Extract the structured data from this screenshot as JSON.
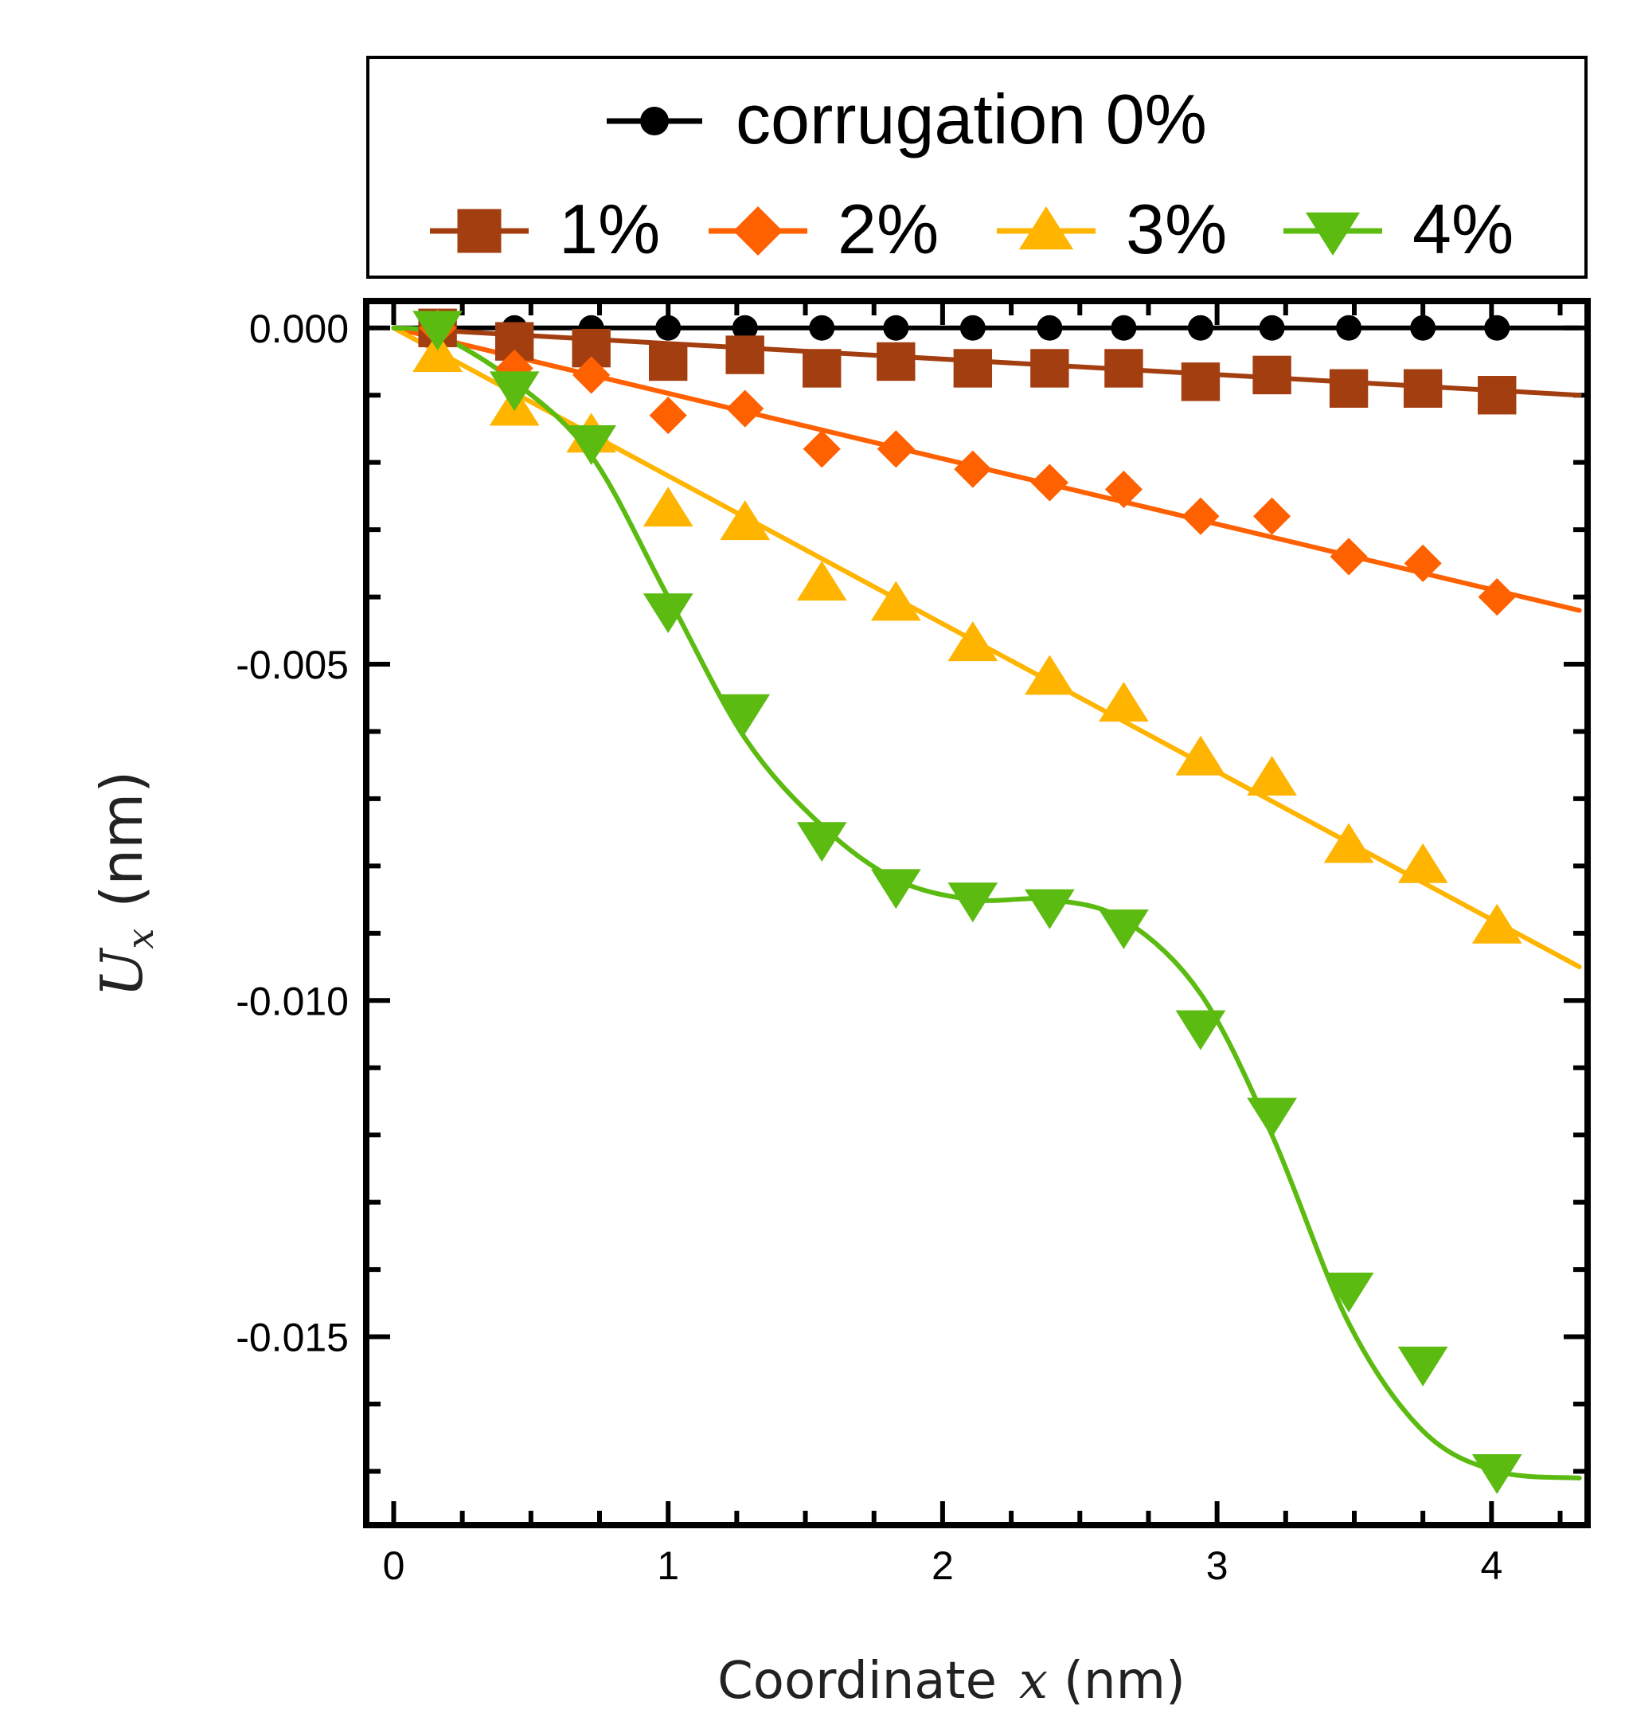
{
  "chart_data": {
    "type": "line",
    "xlabel_prefix": "Coordinate",
    "xlabel_var": "x",
    "xlabel_unit": "(nm)",
    "ylabel_var": "U",
    "ylabel_sub": "x",
    "ylabel_unit": "(nm)",
    "xlim": [
      -0.1,
      4.35
    ],
    "ylim": [
      -0.0178,
      0.0004
    ],
    "x_ticks": [
      0,
      1,
      2,
      3,
      4
    ],
    "x_tick_labels": [
      "0",
      "1",
      "2",
      "3",
      "4"
    ],
    "y_ticks": [
      0,
      -0.005,
      -0.01,
      -0.015
    ],
    "y_tick_labels": [
      "0.000",
      "-0.005",
      "-0.010",
      "-0.015"
    ],
    "legend": {
      "placement": "top",
      "row1_label": "corrugation 0%",
      "row2_labels": [
        "1%",
        "2%",
        "3%",
        "4%"
      ]
    },
    "series": [
      {
        "name": "corrugation 0%",
        "color": "#000000",
        "marker": "circle",
        "x": [
          0.16,
          0.44,
          0.72,
          1.0,
          1.28,
          1.56,
          1.83,
          2.11,
          2.39,
          2.66,
          2.94,
          3.2,
          3.48,
          3.75,
          4.02
        ],
        "y": [
          0,
          0,
          0,
          0,
          0,
          0,
          0,
          0,
          0,
          0,
          0,
          0,
          0,
          0,
          0
        ],
        "fit_x": [
          0,
          4.32
        ],
        "fit_y": [
          0,
          0
        ]
      },
      {
        "name": "1%",
        "color": "#a33e10",
        "marker": "square",
        "x": [
          0.16,
          0.44,
          0.72,
          1.0,
          1.28,
          1.56,
          1.83,
          2.11,
          2.39,
          2.66,
          2.94,
          3.2,
          3.48,
          3.75,
          4.02
        ],
        "y": [
          0,
          -0.0002,
          -0.0003,
          -0.0005,
          -0.0004,
          -0.0006,
          -0.0005,
          -0.0006,
          -0.0006,
          -0.0006,
          -0.0008,
          -0.0007,
          -0.0009,
          -0.0009,
          -0.001
        ],
        "fit_x": [
          0,
          4.32
        ],
        "fit_y": [
          0,
          -0.001
        ]
      },
      {
        "name": "2%",
        "color": "#ff6000",
        "marker": "diamond",
        "x": [
          0.16,
          0.44,
          0.72,
          1.0,
          1.28,
          1.56,
          1.83,
          2.11,
          2.39,
          2.66,
          2.94,
          3.2,
          3.48,
          3.75,
          4.02
        ],
        "y": [
          0,
          -0.0006,
          -0.0007,
          -0.0013,
          -0.0012,
          -0.0018,
          -0.0018,
          -0.0021,
          -0.0023,
          -0.0024,
          -0.0028,
          -0.0028,
          -0.0034,
          -0.0035,
          -0.004
        ],
        "fit_x": [
          0,
          4.32
        ],
        "fit_y": [
          0,
          -0.0042
        ]
      },
      {
        "name": "3%",
        "color": "#ffb400",
        "marker": "triangle-up",
        "x": [
          0.16,
          0.44,
          0.72,
          1.0,
          1.28,
          1.56,
          1.83,
          2.11,
          2.39,
          2.66,
          2.94,
          3.2,
          3.48,
          3.75,
          4.02
        ],
        "y": [
          -0.0004,
          -0.0012,
          -0.0016,
          -0.0027,
          -0.0029,
          -0.0038,
          -0.0041,
          -0.0047,
          -0.0052,
          -0.0056,
          -0.0064,
          -0.0067,
          -0.0077,
          -0.008,
          -0.0089
        ],
        "fit_x": [
          0,
          4.32
        ],
        "fit_y": [
          0,
          -0.0095
        ]
      },
      {
        "name": "4%",
        "color": "#5cbb10",
        "marker": "triangle-down",
        "x": [
          0.16,
          0.44,
          0.72,
          1.0,
          1.28,
          1.56,
          1.83,
          2.11,
          2.39,
          2.66,
          2.94,
          3.2,
          3.48,
          3.75,
          4.02
        ],
        "y": [
          0,
          -0.0009,
          -0.0017,
          -0.0042,
          -0.0057,
          -0.0076,
          -0.0083,
          -0.0085,
          -0.0086,
          -0.0089,
          -0.0104,
          -0.0117,
          -0.0143,
          -0.0154,
          -0.017
        ],
        "fit_x": [
          0,
          0.16,
          0.44,
          0.72,
          1.0,
          1.28,
          1.56,
          1.83,
          2.11,
          2.39,
          2.66,
          2.94,
          3.2,
          3.48,
          3.75,
          4.02,
          4.32
        ],
        "fit_y": [
          0,
          -0.0001,
          -0.0008,
          -0.0019,
          -0.004,
          -0.0061,
          -0.0074,
          -0.0082,
          -0.0085,
          -0.0085,
          -0.0088,
          -0.0099,
          -0.012,
          -0.0148,
          -0.0164,
          -0.017,
          -0.0171
        ]
      }
    ]
  }
}
